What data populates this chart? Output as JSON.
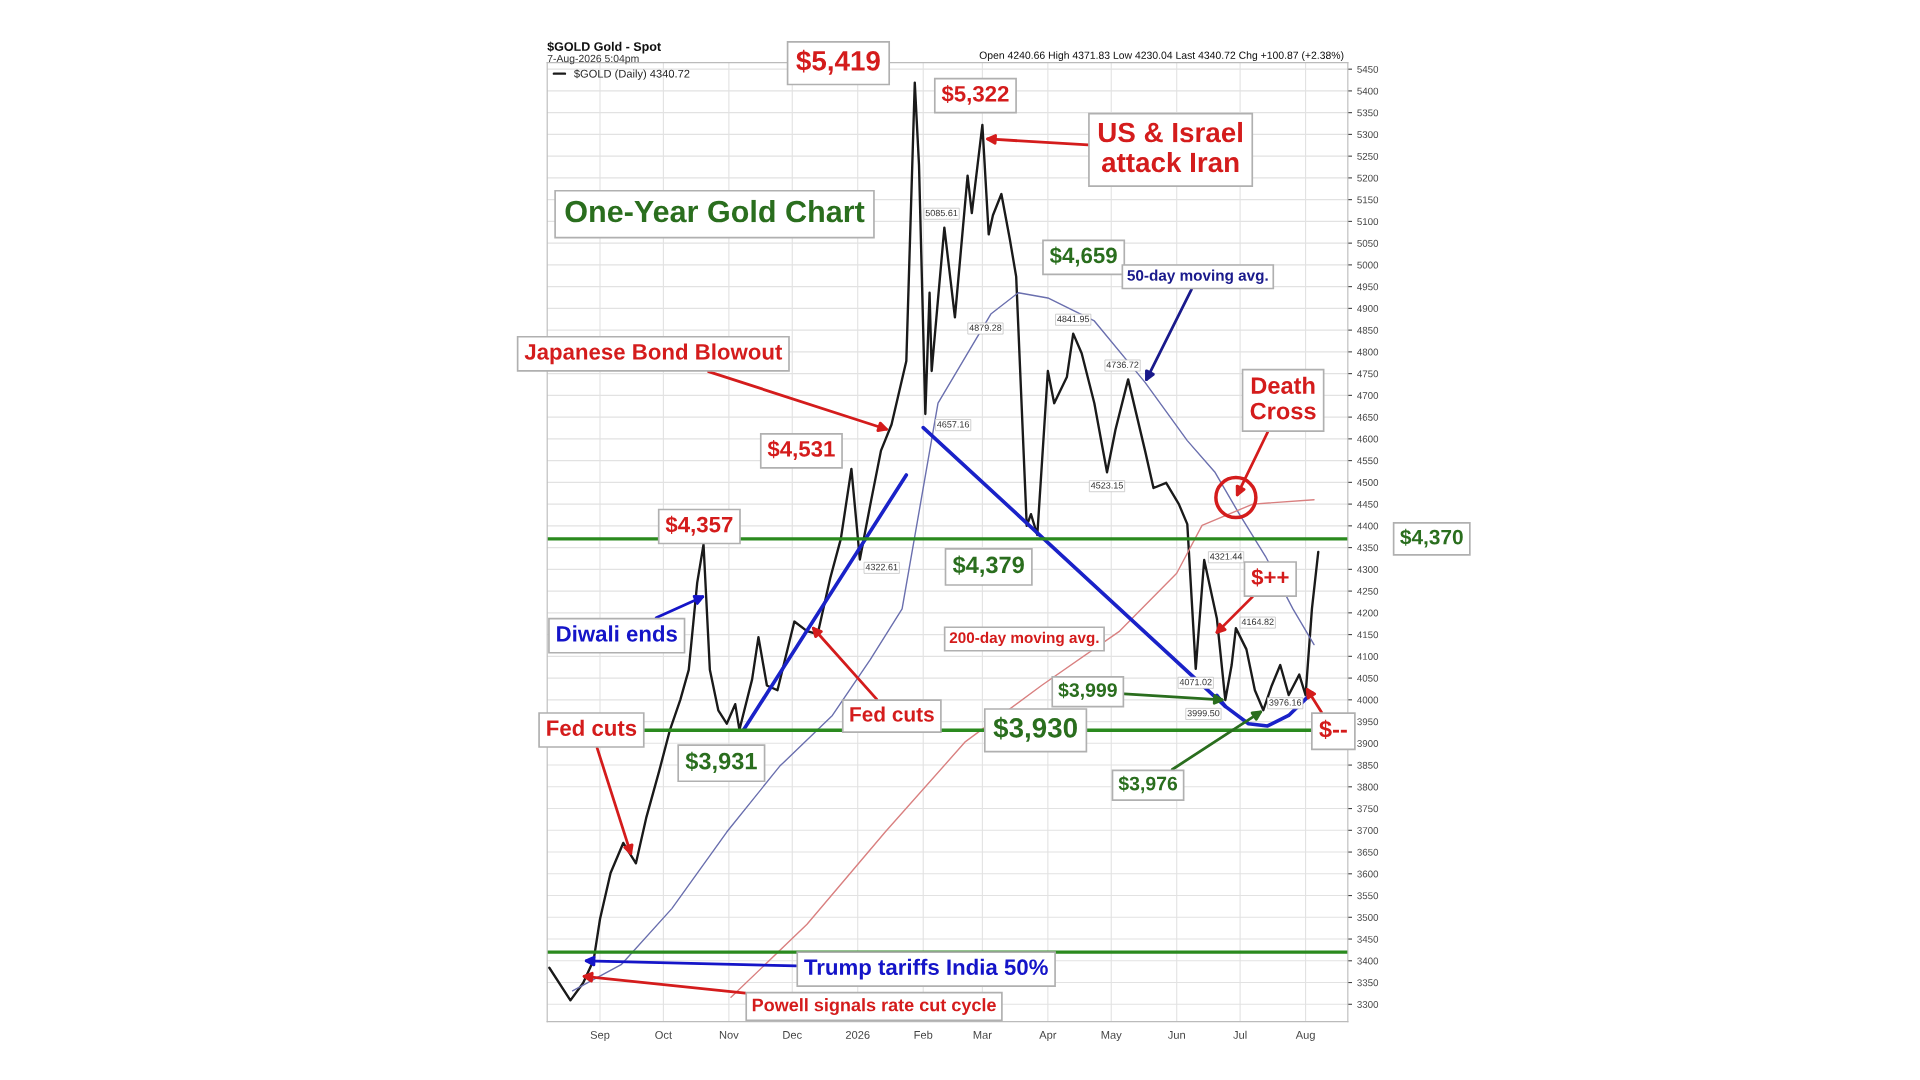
{
  "chart_data": {
    "type": "line",
    "title": "One-Year Gold Chart",
    "series": [
      {
        "name": "$GOLD (Daily) 4340.72",
        "color": "#1a1a1a",
        "x": [
          "2025-08-08",
          "2025-08-18",
          "2025-08-24",
          "2025-08-29",
          "2025-09-01",
          "2025-09-06",
          "2025-09-12",
          "2025-09-18",
          "2025-09-23",
          "2025-09-29",
          "2025-10-04",
          "2025-10-09",
          "2025-10-13",
          "2025-10-17",
          "2025-10-20",
          "2025-10-23",
          "2025-10-27",
          "2025-10-31",
          "2025-11-04",
          "2025-11-06",
          "2025-11-12",
          "2025-11-15",
          "2025-11-19",
          "2025-11-24",
          "2025-12-02",
          "2025-12-08",
          "2025-12-13",
          "2025-12-19",
          "2025-12-24",
          "2025-12-29",
          "2026-01-02",
          "2026-01-07",
          "2026-01-12",
          "2026-01-17",
          "2026-01-24",
          "2026-01-28",
          "2026-01-30",
          "2026-02-02",
          "2026-02-04",
          "2026-02-05",
          "2026-02-11",
          "2026-02-14",
          "2026-02-16",
          "2026-02-22",
          "2026-02-24",
          "2026-03-01",
          "2026-03-04",
          "2026-03-06",
          "2026-03-10",
          "2026-03-14",
          "2026-03-17",
          "2026-03-22",
          "2026-03-24",
          "2026-03-27",
          "2026-04-01",
          "2026-04-04",
          "2026-04-10",
          "2026-04-13",
          "2026-04-17",
          "2026-04-23",
          "2026-04-29",
          "2026-05-03",
          "2026-05-09",
          "2026-05-17",
          "2026-05-21",
          "2026-05-27",
          "2026-06-02",
          "2026-06-06",
          "2026-06-10",
          "2026-06-14",
          "2026-06-20",
          "2026-06-24",
          "2026-06-27",
          "2026-06-29",
          "2026-07-04",
          "2026-07-08",
          "2026-07-12",
          "2026-07-16",
          "2026-07-20",
          "2026-07-24",
          "2026-07-29",
          "2026-08-01",
          "2026-08-04",
          "2026-08-07"
        ],
        "values": [
          3384,
          3309,
          3349,
          3402,
          3496,
          3602,
          3671,
          3624,
          3731,
          3836,
          3929,
          4000,
          4069,
          4269,
          4357,
          4069,
          3976,
          3945,
          3990,
          3931,
          4047,
          4144,
          4033,
          4022,
          4180,
          4158,
          4151,
          4280,
          4370,
          4531,
          4322.61,
          4450,
          4573,
          4633,
          4779,
          5419,
          5230,
          4657.16,
          4936,
          4756,
          5085.61,
          4962,
          4879.28,
          5205,
          5119,
          5322,
          5070,
          5114,
          5163,
          5059,
          4973,
          4400,
          4427,
          4379,
          4756,
          4682,
          4742,
          4841.95,
          4797,
          4682,
          4523.15,
          4621,
          4736.72,
          4573,
          4487,
          4499,
          4450,
          4404,
          4071.02,
          4321.44,
          4187,
          3999.5,
          4080,
          4164.82,
          4116,
          4022,
          3976.16,
          4033,
          4080,
          4011,
          4058,
          4011,
          4209,
          4340
        ],
        "value_labels": [
          null,
          null,
          null,
          null,
          null,
          null,
          null,
          null,
          null,
          null,
          null,
          null,
          null,
          null,
          null,
          null,
          null,
          null,
          null,
          null,
          null,
          null,
          null,
          null,
          null,
          null,
          null,
          null,
          null,
          null,
          "4322.61",
          null,
          null,
          null,
          null,
          null,
          null,
          "4657.16",
          null,
          null,
          "5085.61",
          null,
          "4879.28",
          null,
          null,
          null,
          null,
          null,
          null,
          null,
          null,
          null,
          null,
          null,
          null,
          null,
          null,
          "4841.95",
          null,
          null,
          "4523.15",
          null,
          "4736.72",
          null,
          null,
          null,
          null,
          null,
          "4071.02",
          "4321.44",
          null,
          "3999.50",
          null,
          "4164.82",
          null,
          null,
          "3976.16",
          null,
          null,
          null,
          null,
          null,
          null,
          null
        ]
      },
      {
        "color": "#6a6fae",
        "x": [
          "2025-08-19",
          "2025-09-11",
          "2025-10-05",
          "2025-10-31",
          "2025-11-25",
          "2025-12-20",
          "2026-01-07",
          "2026-01-22",
          "2026-02-08",
          "2026-03-05",
          "2026-03-18",
          "2026-04-01",
          "2026-04-23",
          "2026-05-17",
          "2026-06-06",
          "2026-06-19",
          "2026-07-01",
          "2026-07-13",
          "2026-07-26",
          "2026-08-05"
        ],
        "values": [
          3331,
          3391,
          3520,
          3696,
          3847,
          3964,
          4093,
          4209,
          4682,
          4887,
          4936,
          4924,
          4871,
          4730,
          4596,
          4524,
          4424,
          4330,
          4209,
          4127
        ]
      },
      {
        "color": "#d98080",
        "x": [
          "2025-11-02",
          "2025-12-08",
          "2026-01-14",
          "2026-02-21",
          "2026-03-29",
          "2026-05-05",
          "2026-06-01",
          "2026-06-13",
          "2026-07-07",
          "2026-08-05"
        ],
        "values": [
          3316,
          3484,
          3696,
          3904,
          4033,
          4158,
          4291,
          4401,
          4450,
          4460
        ]
      },
      {
        "type": "line",
        "color": "#1a22c8",
        "x": [
          "2025-11-08",
          "2026-01-24"
        ],
        "values": [
          3931,
          4517
        ]
      },
      {
        "type": "line",
        "color": "#1a22c8",
        "x": [
          "2026-02-01",
          "2026-06-24"
        ],
        "values": [
          4626,
          3985
        ]
      },
      {
        "type": "line",
        "color": "#1a22c8",
        "x": [
          "2026-06-20",
          "2026-06-24",
          "2026-07-05",
          "2026-07-14",
          "2026-07-24",
          "2026-08-04"
        ],
        "values": [
          4010,
          3985,
          3945,
          3940,
          3964,
          4016
        ]
      }
    ],
    "xlim": [
      "2025-08-07",
      "2026-08-21"
    ],
    "xticks": [
      {
        "value": "2025-09-01",
        "label": "Sep"
      },
      {
        "value": "2025-10-01",
        "label": "Oct"
      },
      {
        "value": "2025-11-01",
        "label": "Nov"
      },
      {
        "value": "2025-12-01",
        "label": "Dec"
      },
      {
        "value": "2026-01-01",
        "label": "2026"
      },
      {
        "value": "2026-02-01",
        "label": "Feb"
      },
      {
        "value": "2026-03-01",
        "label": "Mar"
      },
      {
        "value": "2026-04-01",
        "label": "Apr"
      },
      {
        "value": "2026-05-01",
        "label": "May"
      },
      {
        "value": "2026-06-01",
        "label": "Jun"
      },
      {
        "value": "2026-07-01",
        "label": "Jul"
      },
      {
        "value": "2026-08-01",
        "label": "Aug"
      }
    ],
    "ylim": [
      3260,
      5465
    ],
    "yticks": [
      3300,
      3350,
      3400,
      3450,
      3500,
      3550,
      3600,
      3650,
      3700,
      3750,
      3800,
      3850,
      3900,
      3950,
      4000,
      4050,
      4100,
      4150,
      4200,
      4250,
      4300,
      4350,
      4400,
      4450,
      4500,
      4550,
      4600,
      4650,
      4700,
      4750,
      4800,
      4850,
      4900,
      4950,
      5000,
      5050,
      5100,
      5150,
      5200,
      5250,
      5300,
      5350,
      5400,
      5450
    ],
    "ref_lines": [
      {
        "axis": "y",
        "value": 4370,
        "label": "$4,370",
        "color": "#2a8a1e"
      },
      {
        "axis": "y",
        "value": 3930,
        "label": "$3,930",
        "color": "#2a8a1e"
      },
      {
        "axis": "y",
        "value": 3420,
        "color": "#2a8a1e"
      }
    ],
    "annotations": [
      {
        "text": "$5,419",
        "x": "2026-01-28",
        "y": 5419
      },
      {
        "text": "$5,322",
        "x": "2026-03-01",
        "y": 5322
      },
      {
        "text": "US & Israel\nattack Iran",
        "x": "2026-03-02",
        "y": 5290
      },
      "$4,659",
      {
        "text": "Japanese Bond Blowout",
        "x": "2026-01-16",
        "y": 4620
      },
      {
        "text": "$4,531",
        "x": "2025-12-29",
        "y": 4531
      },
      {
        "text": "$4,357",
        "x": "2025-10-20",
        "y": 4357
      },
      {
        "text": "Diwali ends",
        "x": "2025-10-21",
        "y": 4240
      },
      {
        "text": "Fed cuts",
        "x": "2025-12-10",
        "y": 4170
      },
      {
        "text": "Fed cuts",
        "x": "2025-09-16",
        "y": 3640
      },
      {
        "text": "$3,931",
        "x": "2025-11-06",
        "y": 3931
      },
      {
        "text": "$4,379",
        "x": "2026-03-27",
        "y": 4379
      },
      "200-day moving avg.",
      {
        "text": "50-day moving avg.",
        "x": "2026-05-17",
        "y": 4730
      },
      {
        "text": "Death\nCross",
        "x": "2026-06-29",
        "y": 4465
      },
      {
        "text": "$++",
        "x": "2026-06-19",
        "y": 4150
      },
      {
        "text": "$3,999",
        "x": "2026-06-24",
        "y": 3999.5
      },
      {
        "text": "$3,976",
        "x": "2026-07-12",
        "y": 3976.16
      },
      {
        "text": "$--",
        "x": "2026-08-01",
        "y": 4030
      },
      {
        "text": "Trump tariffs India 50%",
        "x": "2025-08-24",
        "y": 3400
      },
      {
        "text": "Powell signals rate cut cycle",
        "x": "2025-08-23",
        "y": 3365
      },
      "$GOLD Gold - Spot",
      "7-Aug-2026 5:04pm",
      "Open 4240.66 High 4371.83 Low 4230.04 Last 4340.72 Chg +100.87 (+2.38%)"
    ],
    "grid": true,
    "legend": "top left",
    "marker": "none",
    "line_style": "solid"
  }
}
